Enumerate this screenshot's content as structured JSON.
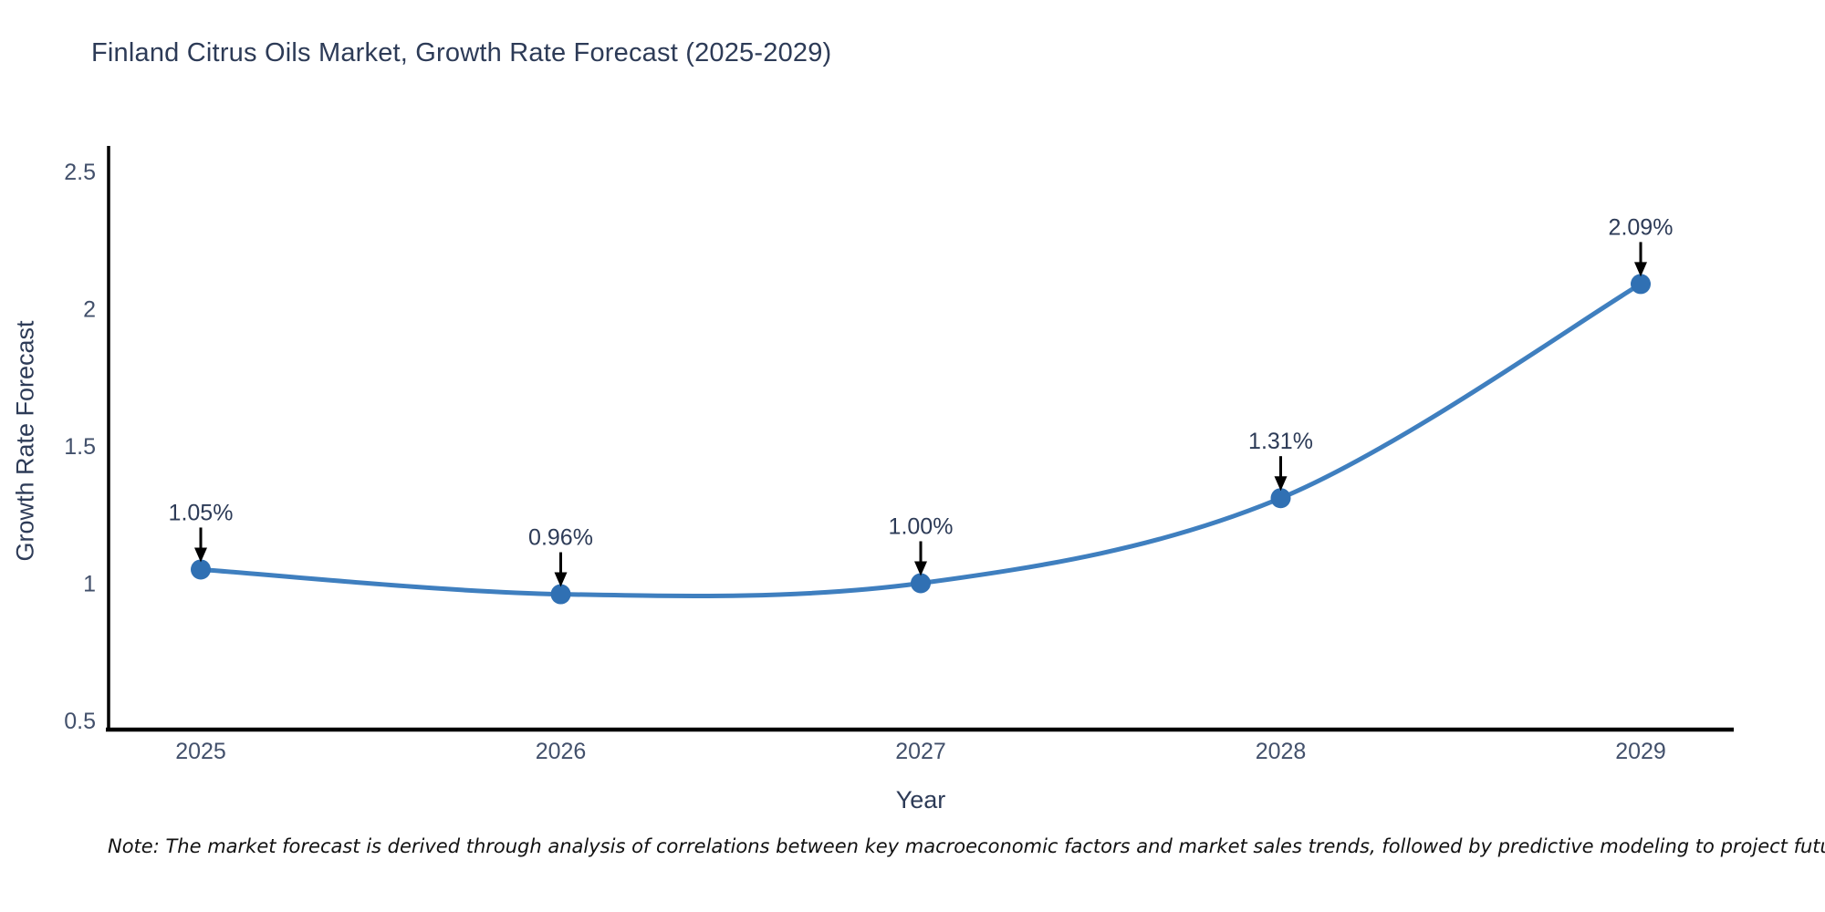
{
  "title": "Finland Citrus Oils Market, Growth Rate Forecast (2025-2029)",
  "note": "Note: The market forecast is derived through analysis of correlations between key macroeconomic factors and market sales trends, followed by predictive modeling to project future sales",
  "chart_data": {
    "type": "line",
    "title": "Finland Citrus Oils Market, Growth Rate Forecast (2025-2029)",
    "xlabel": "Year",
    "ylabel": "Growth Rate Forecast",
    "x": [
      2025,
      2026,
      2027,
      2028,
      2029
    ],
    "values": [
      1.05,
      0.96,
      1.0,
      1.31,
      2.09
    ],
    "point_labels": [
      "1.05%",
      "0.96%",
      "1.00%",
      "1.31%",
      "2.09%"
    ],
    "xtick_labels": [
      "2025",
      "2026",
      "2027",
      "2028",
      "2029"
    ],
    "ytick_values": [
      0.5,
      1,
      1.5,
      2,
      2.5
    ],
    "ytick_labels": [
      "0.5",
      "1",
      "1.5",
      "2",
      "2.5"
    ],
    "ylim": [
      0.5,
      2.5
    ],
    "grid": false,
    "legend": "none",
    "line_color": "#3f7fbf",
    "marker_color": "#3070b3",
    "axis_color": "#000000",
    "annotation_arrow_color": "#000000",
    "smooth": true
  }
}
